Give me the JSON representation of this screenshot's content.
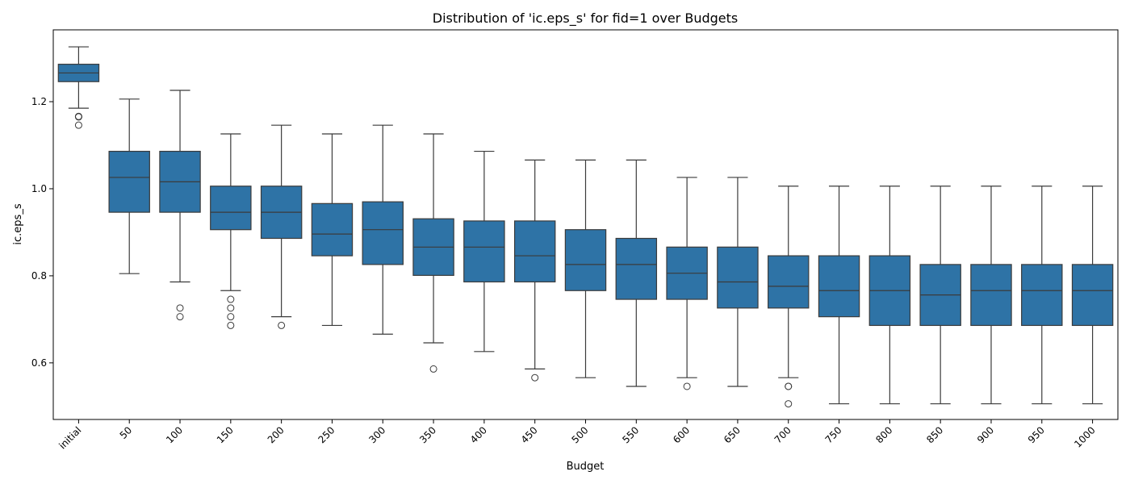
{
  "chart_data": {
    "type": "box",
    "title": "Distribution of 'ic.eps_s' for fid=1 over Budgets",
    "xlabel": "Budget",
    "ylabel": "ic.eps_s",
    "ylim": [
      0.47,
      1.365
    ],
    "yticks": [
      0.6,
      0.8,
      1.0,
      1.2
    ],
    "ytick_labels": [
      "0.6",
      "0.8",
      "1.0",
      "1.2"
    ],
    "box_color": "#2e73a6",
    "categories": [
      "initial",
      "50",
      "100",
      "150",
      "200",
      "250",
      "300",
      "350",
      "400",
      "450",
      "500",
      "550",
      "600",
      "650",
      "700",
      "750",
      "800",
      "850",
      "900",
      "950",
      "1000"
    ],
    "boxes": [
      {
        "whislo": 1.185,
        "q1": 1.246,
        "med": 1.266,
        "q3": 1.286,
        "whishi": 1.326,
        "fliers": [
          1.166,
          1.166,
          1.165,
          1.146
        ]
      },
      {
        "whislo": 0.805,
        "q1": 0.946,
        "med": 1.026,
        "q3": 1.086,
        "whishi": 1.206,
        "fliers": []
      },
      {
        "whislo": 0.786,
        "q1": 0.946,
        "med": 1.016,
        "q3": 1.086,
        "whishi": 1.226,
        "fliers": [
          0.726,
          0.706
        ]
      },
      {
        "whislo": 0.766,
        "q1": 0.906,
        "med": 0.946,
        "q3": 1.006,
        "whishi": 1.126,
        "fliers": [
          0.746,
          0.726,
          0.706,
          0.686
        ]
      },
      {
        "whislo": 0.706,
        "q1": 0.886,
        "med": 0.946,
        "q3": 1.006,
        "whishi": 1.146,
        "fliers": [
          0.686
        ]
      },
      {
        "whislo": 0.686,
        "q1": 0.846,
        "med": 0.896,
        "q3": 0.966,
        "whishi": 1.126,
        "fliers": []
      },
      {
        "whislo": 0.666,
        "q1": 0.826,
        "med": 0.906,
        "q3": 0.97,
        "whishi": 1.146,
        "fliers": []
      },
      {
        "whislo": 0.646,
        "q1": 0.801,
        "med": 0.866,
        "q3": 0.931,
        "whishi": 1.126,
        "fliers": [
          0.586
        ]
      },
      {
        "whislo": 0.626,
        "q1": 0.786,
        "med": 0.866,
        "q3": 0.926,
        "whishi": 1.086,
        "fliers": []
      },
      {
        "whislo": 0.586,
        "q1": 0.786,
        "med": 0.846,
        "q3": 0.926,
        "whishi": 1.066,
        "fliers": [
          0.566
        ]
      },
      {
        "whislo": 0.566,
        "q1": 0.766,
        "med": 0.826,
        "q3": 0.906,
        "whishi": 1.066,
        "fliers": []
      },
      {
        "whislo": 0.546,
        "q1": 0.746,
        "med": 0.826,
        "q3": 0.886,
        "whishi": 1.066,
        "fliers": []
      },
      {
        "whislo": 0.566,
        "q1": 0.746,
        "med": 0.806,
        "q3": 0.866,
        "whishi": 1.026,
        "fliers": [
          0.546
        ]
      },
      {
        "whislo": 0.546,
        "q1": 0.726,
        "med": 0.786,
        "q3": 0.866,
        "whishi": 1.026,
        "fliers": []
      },
      {
        "whislo": 0.566,
        "q1": 0.726,
        "med": 0.776,
        "q3": 0.846,
        "whishi": 1.006,
        "fliers": [
          0.546,
          0.546,
          0.506
        ]
      },
      {
        "whislo": 0.506,
        "q1": 0.706,
        "med": 0.766,
        "q3": 0.846,
        "whishi": 1.006,
        "fliers": []
      },
      {
        "whislo": 0.506,
        "q1": 0.686,
        "med": 0.766,
        "q3": 0.846,
        "whishi": 1.006,
        "fliers": []
      },
      {
        "whislo": 0.506,
        "q1": 0.686,
        "med": 0.756,
        "q3": 0.826,
        "whishi": 1.006,
        "fliers": []
      },
      {
        "whislo": 0.506,
        "q1": 0.686,
        "med": 0.766,
        "q3": 0.826,
        "whishi": 1.006,
        "fliers": []
      },
      {
        "whislo": 0.506,
        "q1": 0.686,
        "med": 0.766,
        "q3": 0.826,
        "whishi": 1.006,
        "fliers": []
      },
      {
        "whislo": 0.506,
        "q1": 0.686,
        "med": 0.766,
        "q3": 0.826,
        "whishi": 1.006,
        "fliers": []
      }
    ]
  }
}
